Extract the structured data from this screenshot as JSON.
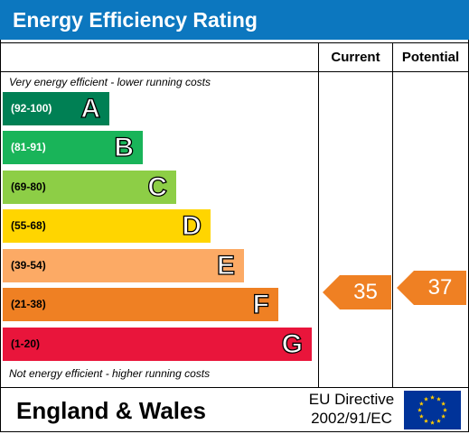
{
  "header": {
    "title": "Energy Efficiency Rating"
  },
  "columns": {
    "current": "Current",
    "potential": "Potential"
  },
  "notes": {
    "top": "Very energy efficient - lower running costs",
    "bottom": "Not energy efficient - higher running costs"
  },
  "bands": [
    {
      "range": "(92-100)",
      "letter": "A",
      "color": "#008054",
      "range_color": "#ffffff"
    },
    {
      "range": "(81-91)",
      "letter": "B",
      "color": "#19b459",
      "range_color": "#ffffff"
    },
    {
      "range": "(69-80)",
      "letter": "C",
      "color": "#8dce46",
      "range_color": "#000000"
    },
    {
      "range": "(55-68)",
      "letter": "D",
      "color": "#ffd500",
      "range_color": "#000000"
    },
    {
      "range": "(39-54)",
      "letter": "E",
      "color": "#fcaa65",
      "range_color": "#000000"
    },
    {
      "range": "(21-38)",
      "letter": "F",
      "color": "#ef8023",
      "range_color": "#000000"
    },
    {
      "range": "(1-20)",
      "letter": "G",
      "color": "#e9153b",
      "range_color": "#000000"
    }
  ],
  "ratings": {
    "current": {
      "value": "35",
      "band": "F",
      "color": "#ef8023"
    },
    "potential": {
      "value": "37",
      "band": "F",
      "color": "#ef8023"
    }
  },
  "footer": {
    "region": "England & Wales",
    "directive_line1": "EU Directive",
    "directive_line2": "2002/91/EC"
  },
  "flag": {
    "icon": "eu-flag-icon",
    "background": "#003399",
    "star_color": "#ffcc00"
  }
}
